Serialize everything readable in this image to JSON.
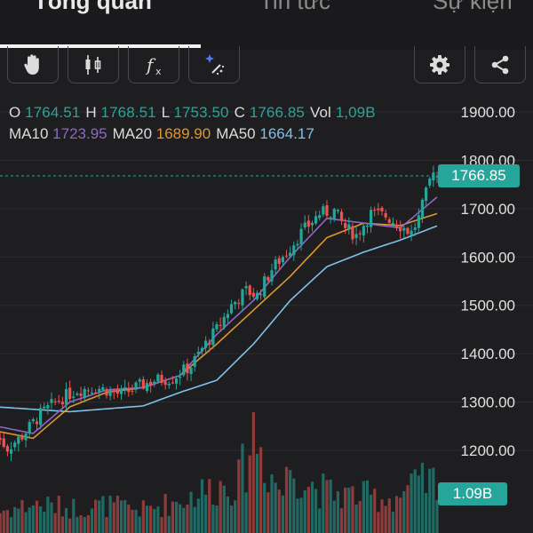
{
  "tabs": [
    {
      "label": "Tổng quan",
      "active": true
    },
    {
      "label": "Tin tức",
      "active": false
    },
    {
      "label": "Sự kiện",
      "active": false
    }
  ],
  "toolbar": {
    "left_icons": [
      "hand-icon",
      "candlestick-icon",
      "function-icon",
      "magic-wand-icon"
    ],
    "right_icons": [
      "gear-icon",
      "share-icon"
    ]
  },
  "ohlc": {
    "o_label": "O",
    "o_value": "1764.51",
    "h_label": "H",
    "h_value": "1768.51",
    "l_label": "L",
    "l_value": "1753.50",
    "c_label": "C",
    "c_value": "1766.85",
    "vol_label": "Vol",
    "vol_value": "1,09B"
  },
  "ma": {
    "ma10_label": "MA10",
    "ma10_value": "1723.95",
    "ma20_label": "MA20",
    "ma20_value": "1689.90",
    "ma50_label": "MA50",
    "ma50_value": "1664.17"
  },
  "current_price_label": "1766.85",
  "current_volume_label": "1.09B",
  "colors": {
    "up": "#26a69a",
    "down": "#ef5350",
    "ma10": "#8e67c9",
    "ma20": "#e0962d",
    "ma50": "#7ec1ea"
  },
  "chart_data": {
    "type": "candlestick",
    "y_axis_ticks": [
      "1900.00",
      "1800.00",
      "1700.00",
      "1600.00",
      "1500.00",
      "1400.00",
      "1300.00",
      "1200.00"
    ],
    "ylim": [
      1160,
      1925
    ],
    "close_anchors": [
      [
        0,
        1230
      ],
      [
        3,
        1205
      ],
      [
        7,
        1230
      ],
      [
        12,
        1275
      ],
      [
        17,
        1305
      ],
      [
        22,
        1325
      ],
      [
        27,
        1330
      ],
      [
        30,
        1325
      ],
      [
        34,
        1315
      ],
      [
        38,
        1330
      ],
      [
        43,
        1345
      ],
      [
        48,
        1350
      ],
      [
        53,
        1375
      ],
      [
        56,
        1410
      ],
      [
        60,
        1450
      ],
      [
        64,
        1500
      ],
      [
        68,
        1530
      ],
      [
        71,
        1520
      ],
      [
        75,
        1575
      ],
      [
        79,
        1610
      ],
      [
        83,
        1650
      ],
      [
        88,
        1690
      ],
      [
        92,
        1695
      ],
      [
        95,
        1660
      ],
      [
        98,
        1645
      ],
      [
        102,
        1690
      ],
      [
        106,
        1685
      ],
      [
        110,
        1665
      ],
      [
        113,
        1650
      ],
      [
        115,
        1680
      ],
      [
        117,
        1730
      ],
      [
        119,
        1785
      ],
      [
        120,
        1766.85
      ]
    ],
    "ma50_anchors": [
      [
        0,
        1290
      ],
      [
        20,
        1280
      ],
      [
        40,
        1292
      ],
      [
        50,
        1320
      ],
      [
        60,
        1345
      ],
      [
        70,
        1420
      ],
      [
        80,
        1510
      ],
      [
        90,
        1580
      ],
      [
        100,
        1610
      ],
      [
        110,
        1635
      ],
      [
        120,
        1664.17
      ]
    ],
    "ma20_anchors": [
      [
        0,
        1240
      ],
      [
        10,
        1225
      ],
      [
        20,
        1290
      ],
      [
        30,
        1320
      ],
      [
        40,
        1330
      ],
      [
        50,
        1355
      ],
      [
        60,
        1420
      ],
      [
        70,
        1490
      ],
      [
        80,
        1560
      ],
      [
        90,
        1640
      ],
      [
        100,
        1670
      ],
      [
        110,
        1665
      ],
      [
        120,
        1689.9
      ]
    ],
    "ma10_anchors": [
      [
        0,
        1250
      ],
      [
        10,
        1235
      ],
      [
        20,
        1300
      ],
      [
        30,
        1325
      ],
      [
        40,
        1330
      ],
      [
        50,
        1355
      ],
      [
        60,
        1440
      ],
      [
        70,
        1510
      ],
      [
        80,
        1600
      ],
      [
        90,
        1680
      ],
      [
        100,
        1670
      ],
      [
        110,
        1660
      ],
      [
        120,
        1723.95
      ]
    ],
    "volume_profile": [
      [
        0,
        0.18
      ],
      [
        10,
        0.25
      ],
      [
        20,
        0.22
      ],
      [
        30,
        0.24
      ],
      [
        40,
        0.2
      ],
      [
        50,
        0.28
      ],
      [
        55,
        0.35
      ],
      [
        60,
        0.4
      ],
      [
        66,
        0.45
      ],
      [
        68,
        0.62
      ],
      [
        70,
        0.9
      ],
      [
        74,
        0.55
      ],
      [
        78,
        0.35
      ],
      [
        80,
        0.6
      ],
      [
        84,
        0.45
      ],
      [
        90,
        0.35
      ],
      [
        100,
        0.32
      ],
      [
        108,
        0.3
      ],
      [
        115,
        0.42
      ],
      [
        120,
        0.45
      ]
    ]
  }
}
